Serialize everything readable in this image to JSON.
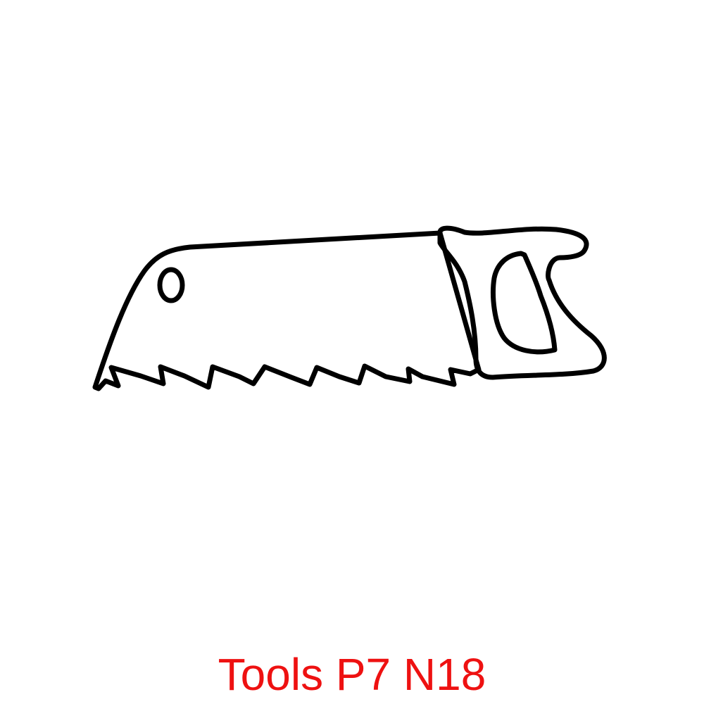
{
  "caption": {
    "text": "Tools P7 N18"
  },
  "illustration": {
    "subject": "hand-saw",
    "icon": "hand-saw-icon"
  },
  "colors": {
    "caption": "#ee1111",
    "stroke": "#000000",
    "background": "#ffffff"
  }
}
